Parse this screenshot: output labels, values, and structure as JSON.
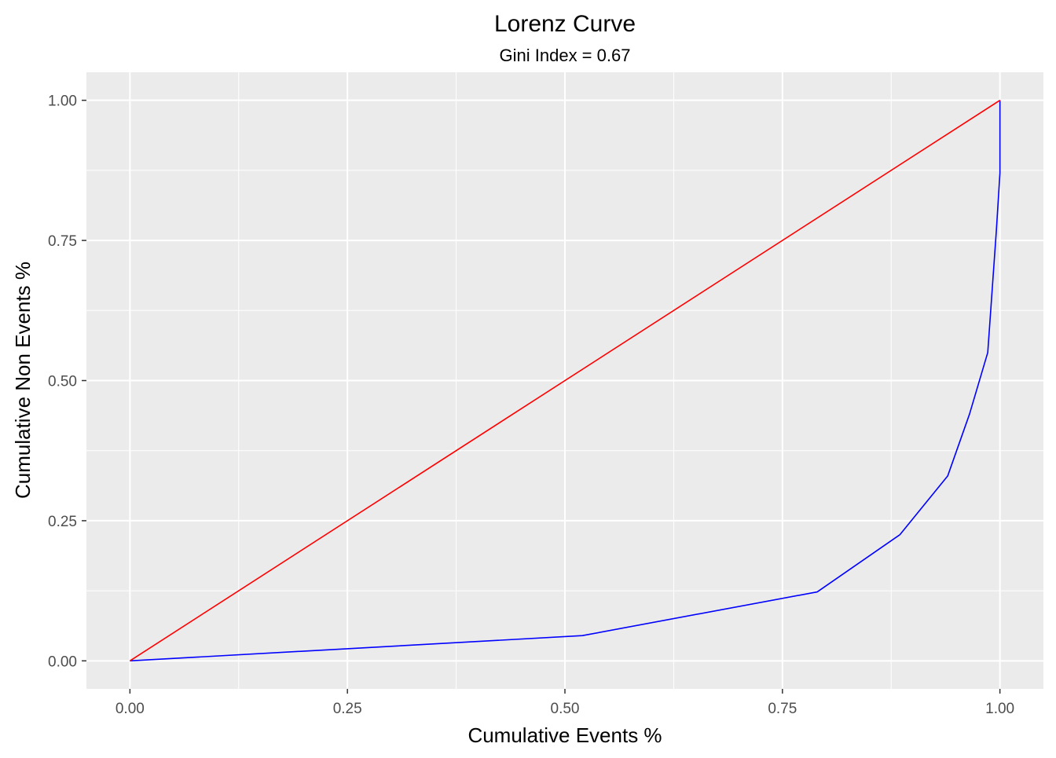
{
  "chart_data": {
    "type": "line",
    "title": "Lorenz Curve",
    "subtitle": "Gini Index = 0.67",
    "xlabel": "Cumulative Events %",
    "ylabel": "Cumulative Non Events %",
    "xlim": [
      -0.05,
      1.05
    ],
    "ylim": [
      -0.05,
      1.05
    ],
    "x_ticks": [
      0,
      0.25,
      0.5,
      0.75,
      1
    ],
    "x_tick_labels": [
      "0.00",
      "0.25",
      "0.50",
      "0.75",
      "1.00"
    ],
    "y_ticks": [
      0,
      0.25,
      0.5,
      0.75,
      1
    ],
    "y_tick_labels": [
      "0.00",
      "0.25",
      "0.50",
      "0.75",
      "1.00"
    ],
    "grid": true,
    "legend": "none",
    "panel_background": "#ebebeb",
    "grid_color": "#ffffff",
    "series": [
      {
        "color": "#0000ff",
        "points": [
          [
            0.0,
            0.0
          ],
          [
            0.52,
            0.045
          ],
          [
            0.79,
            0.123
          ],
          [
            0.885,
            0.225
          ],
          [
            0.94,
            0.33
          ],
          [
            0.965,
            0.44
          ],
          [
            0.986,
            0.55
          ],
          [
            0.996,
            0.77
          ],
          [
            1.0,
            0.87
          ],
          [
            1.0,
            1.0
          ]
        ]
      },
      {
        "color": "#ff0000",
        "points": [
          [
            0.0,
            0.0
          ],
          [
            1.0,
            1.0
          ]
        ]
      }
    ]
  }
}
